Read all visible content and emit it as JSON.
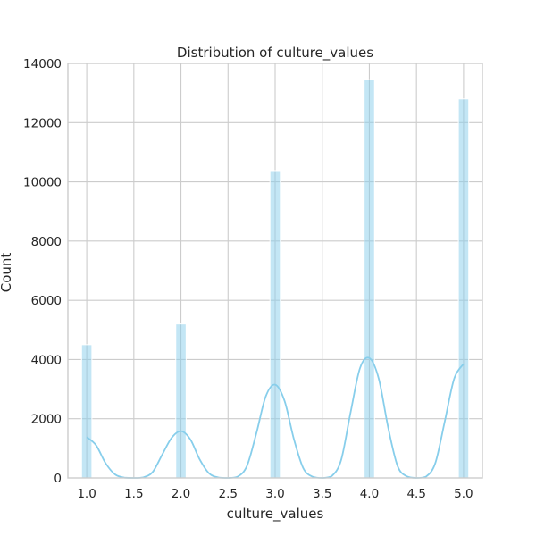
{
  "chart_data": {
    "type": "bar",
    "title": "Distribution of culture_values",
    "xlabel": "culture_values",
    "ylabel": "Count",
    "xlim": [
      0.8,
      5.2
    ],
    "ylim": [
      0,
      14000
    ],
    "xticks": [
      "1.0",
      "1.5",
      "2.0",
      "2.5",
      "3.0",
      "3.5",
      "4.0",
      "4.5",
      "5.0"
    ],
    "yticks": [
      "0",
      "2000",
      "4000",
      "6000",
      "8000",
      "10000",
      "12000",
      "14000"
    ],
    "grid": true,
    "bins": [
      {
        "x": 1.0,
        "value": 4500
      },
      {
        "x": 2.0,
        "value": 5200
      },
      {
        "x": 3.0,
        "value": 10380
      },
      {
        "x": 4.0,
        "value": 13450
      },
      {
        "x": 5.0,
        "value": 12800
      }
    ],
    "kde": {
      "x": [
        1.0,
        1.1,
        1.2,
        1.3,
        1.4,
        1.5,
        1.6,
        1.7,
        1.8,
        1.9,
        2.0,
        2.1,
        2.2,
        2.3,
        2.4,
        2.5,
        2.6,
        2.7,
        2.8,
        2.9,
        3.0,
        3.1,
        3.2,
        3.3,
        3.4,
        3.5,
        3.6,
        3.7,
        3.8,
        3.9,
        4.0,
        4.1,
        4.2,
        4.3,
        4.4,
        4.5,
        4.6,
        4.7,
        4.8,
        4.9,
        5.0
      ],
      "y": [
        1380,
        1100,
        500,
        120,
        10,
        0,
        20,
        200,
        780,
        1350,
        1580,
        1300,
        620,
        150,
        15,
        0,
        40,
        400,
        1500,
        2750,
        3150,
        2600,
        1300,
        320,
        40,
        0,
        60,
        600,
        2200,
        3700,
        4050,
        3350,
        1700,
        400,
        50,
        0,
        40,
        500,
        1900,
        3350,
        3850
      ]
    },
    "colors": {
      "bar": "#87ceeb",
      "kde": "#87ceeb",
      "grid": "#cccccc",
      "text": "#262626"
    }
  }
}
